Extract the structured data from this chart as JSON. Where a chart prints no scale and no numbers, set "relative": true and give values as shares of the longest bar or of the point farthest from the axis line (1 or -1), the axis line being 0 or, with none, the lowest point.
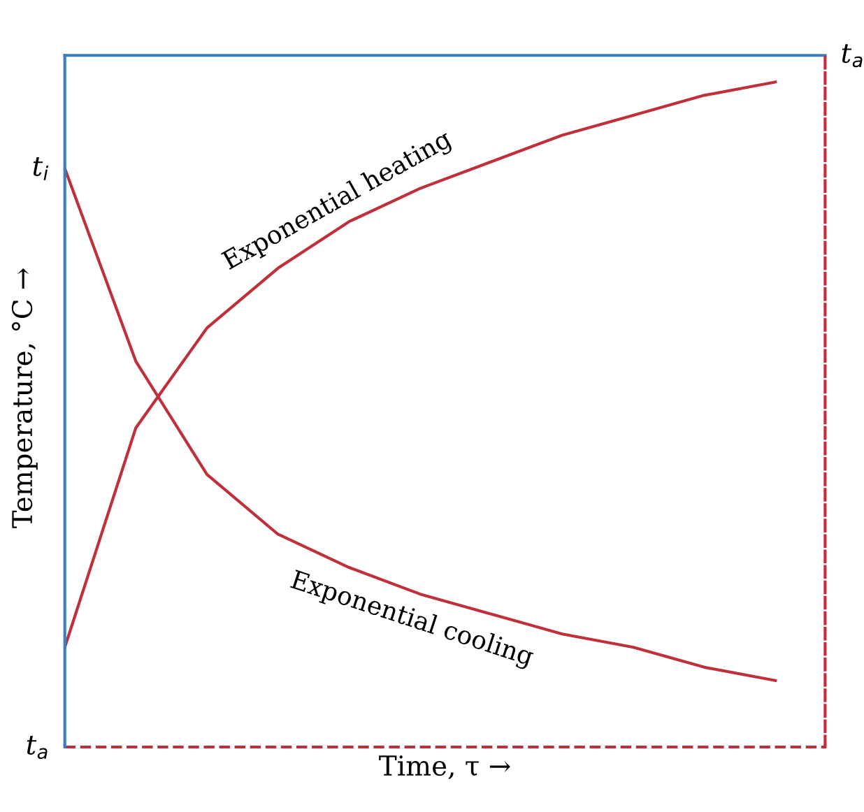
{
  "chart_data": {
    "type": "line",
    "relative": true,
    "xlabel": "Time, τ →",
    "ylabel": "Temperature, °C →",
    "categories": [
      null,
      null,
      null,
      null,
      null,
      null,
      null,
      null,
      null,
      null,
      null
    ],
    "series": [
      {
        "name": "Exponential heating",
        "color": "#c0303a",
        "values": [
          0.15,
          0.48,
          0.63,
          0.72,
          0.79,
          0.84,
          0.88,
          0.92,
          0.95,
          0.98,
          1.0
        ]
      },
      {
        "name": "Exponential cooling",
        "color": "#c0303a",
        "values": [
          0.87,
          0.58,
          0.41,
          0.32,
          0.27,
          0.23,
          0.2,
          0.17,
          0.15,
          0.12,
          0.1
        ]
      }
    ],
    "annotations": [
      "t$_{i}$"
    ],
    "ref_lines": [
      {
        "axis": "y",
        "value": 0,
        "label": "t$_{a}$",
        "color": "#c0303a",
        "line_style": "dashed"
      },
      {
        "axis": "y",
        "value": 1.04,
        "label": "t$_{a}$",
        "color": "#3a7fc0",
        "line_style": "solid"
      }
    ],
    "marker": "none",
    "line_style": "solid"
  }
}
